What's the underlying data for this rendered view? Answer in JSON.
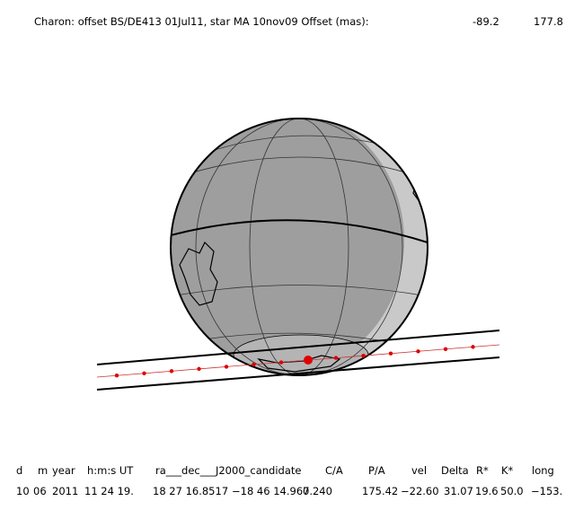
{
  "header": {
    "title": "Charon: offset BS/DE413 01Jul11, star MA 10nov09  Offset (mas):",
    "offset_x": "-89.2",
    "offset_y": "177.8"
  },
  "table": {
    "columns": [
      "d",
      "m",
      "year",
      "h:m:s UT",
      "ra___dec___J2000_candidate",
      "C/A",
      "P/A",
      "vel",
      "Delta",
      "R*",
      "K*",
      "long"
    ],
    "row": [
      "10",
      "06",
      "2011",
      "11 24 19.",
      "18 27 16.8517",
      "−18 46  14.967",
      "0.240",
      "175.42",
      "−22.60",
      "31.07",
      "19.6",
      "50.0",
      "−153."
    ]
  }
}
